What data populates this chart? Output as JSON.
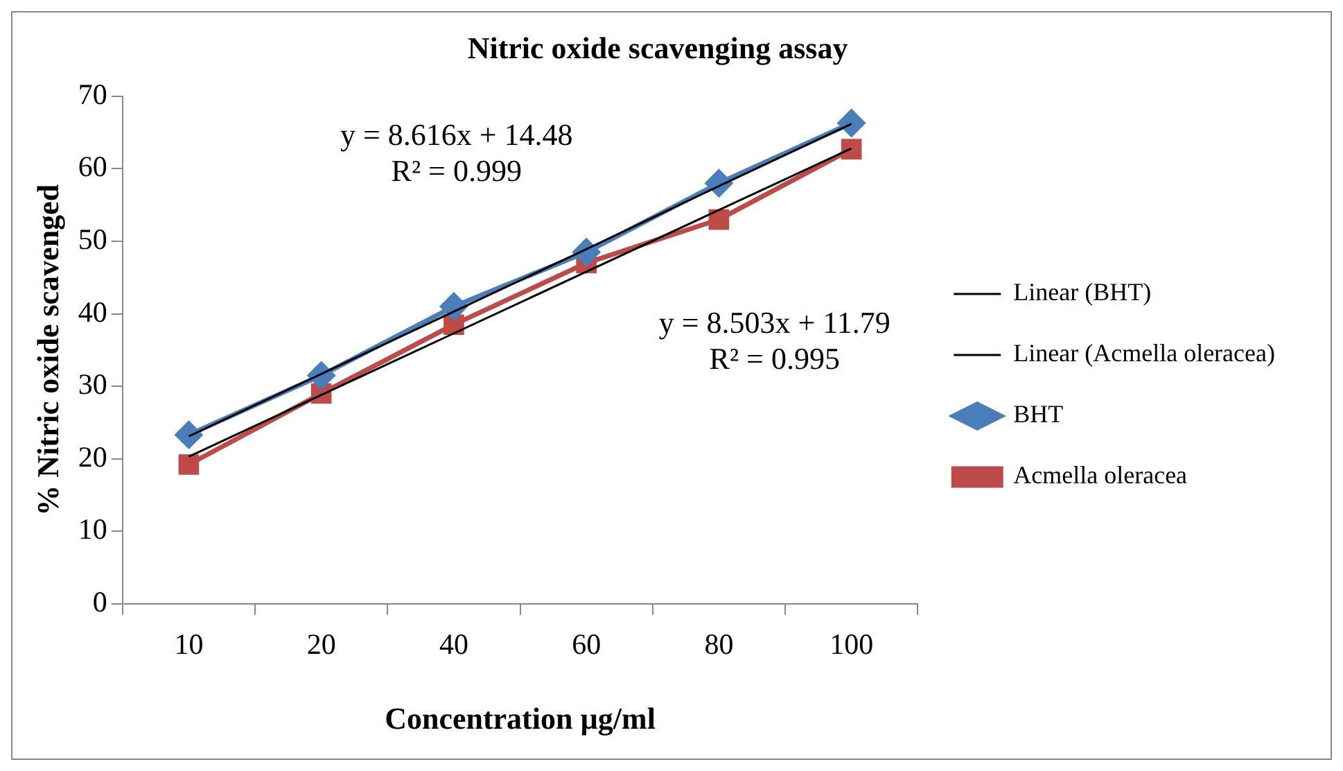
{
  "chart_data": {
    "type": "line",
    "title": "Nitric oxide scavenging assay",
    "xlabel": "Concentration µg/ml",
    "ylabel": "% Nitric oxide scavenged",
    "categories": [
      "10",
      "20",
      "40",
      "60",
      "80",
      "100"
    ],
    "series": [
      {
        "name": "BHT",
        "color": "#4a7ebb",
        "marker": "diamond",
        "values": [
          23.3,
          31.5,
          41,
          48.5,
          58,
          66.3
        ]
      },
      {
        "name": "Acmella oleracea",
        "color": "#be4b48",
        "marker": "square",
        "values": [
          19.2,
          29,
          38.5,
          47,
          53,
          62.7
        ]
      },
      {
        "name": "Linear (BHT)",
        "color": "#000000",
        "marker": "none",
        "values": [
          23.1,
          31.7,
          40.3,
          48.9,
          57.6,
          66.2
        ]
      },
      {
        "name": "Linear (Acmella oleracea)",
        "color": "#000000",
        "marker": "none",
        "values": [
          20.3,
          28.8,
          37.3,
          45.8,
          54.3,
          62.8
        ]
      }
    ],
    "ylim": [
      0,
      70
    ],
    "yticks": [
      0,
      10,
      20,
      30,
      40,
      50,
      60,
      70
    ],
    "grid": false,
    "legend": "right",
    "annotations": [
      "y = 8.616x + 14.48\nR² = 0.999",
      "y = 8.503x + 11.79\nR² = 0.995"
    ]
  }
}
